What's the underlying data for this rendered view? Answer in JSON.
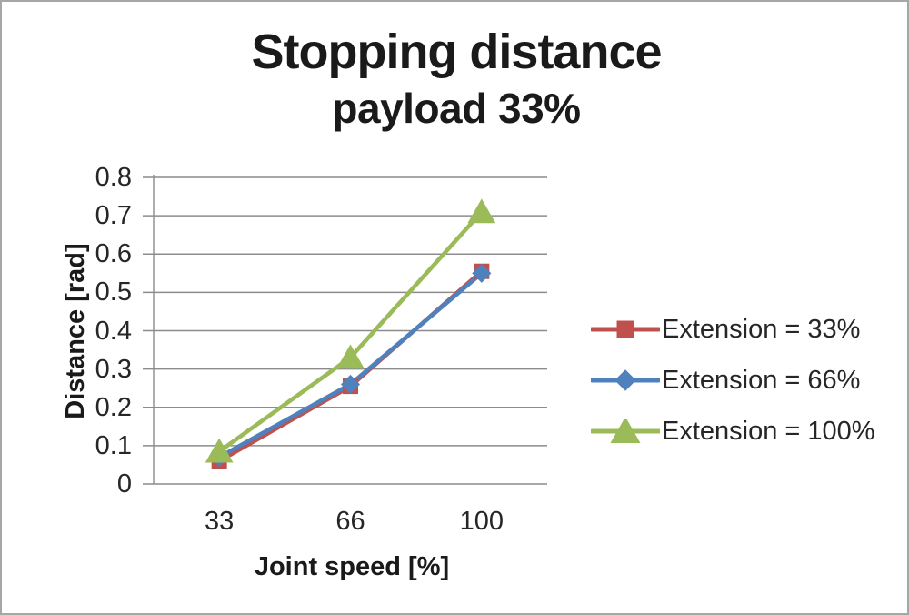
{
  "chart_data": {
    "type": "line",
    "title": "Stopping distance",
    "subtitle": "payload 33%",
    "xlabel": "Joint speed [%]",
    "ylabel": "Distance [rad]",
    "categories": [
      "33",
      "66",
      "100"
    ],
    "ylim": [
      0,
      0.8
    ],
    "ytick_labels": [
      "0.8",
      "0.7",
      "0.6",
      "0.5",
      "0.4",
      "0.3",
      "0.2",
      "0.1",
      "0"
    ],
    "grid": true,
    "legend_position": "right",
    "series": [
      {
        "name": "Extension = 33%",
        "marker": "square",
        "color": "#c0504d",
        "values": [
          0.06,
          0.255,
          0.555
        ]
      },
      {
        "name": "Extension = 66%",
        "marker": "diamond",
        "color": "#4f81bd",
        "values": [
          0.07,
          0.26,
          0.55
        ]
      },
      {
        "name": "Extension = 100%",
        "marker": "triangle",
        "color": "#9bbb59",
        "values": [
          0.085,
          0.33,
          0.71
        ]
      }
    ],
    "colors": {
      "gridline": "#8c8c8c",
      "axis_line": "#8c8c8c",
      "text": "#262626",
      "frame_border": "#a6a6a6",
      "background": "#ffffff"
    }
  }
}
